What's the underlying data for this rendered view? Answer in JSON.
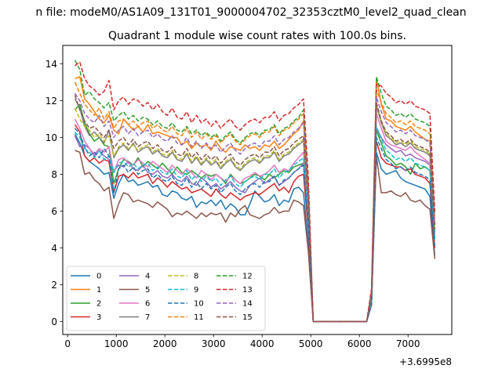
{
  "figure": {
    "suptitle": "n file: modeM0/AS1A09_131T01_9000004702_32353cztM0_level2_quad_clean"
  },
  "chart_data": {
    "type": "line",
    "title": "Quadrant 1 module wise count rates with 100.0s bins.",
    "xlabel": "",
    "ylabel": "",
    "x_offset_label": "+3.6995e8",
    "xlim": [
      -100,
      7900
    ],
    "ylim": [
      -0.7,
      15
    ],
    "xticks": [
      0,
      1000,
      2000,
      3000,
      4000,
      5000,
      6000,
      7000
    ],
    "yticks": [
      0,
      2,
      4,
      6,
      8,
      10,
      12,
      14
    ],
    "legend_position": "lower-left",
    "legend_columns": 4,
    "grid": false,
    "x": [
      150,
      250,
      350,
      450,
      550,
      650,
      750,
      850,
      950,
      1050,
      1150,
      1250,
      1350,
      1450,
      1550,
      1650,
      1750,
      1850,
      1950,
      2050,
      2150,
      2250,
      2350,
      2450,
      2550,
      2650,
      2750,
      2850,
      2950,
      3050,
      3150,
      3250,
      3350,
      3450,
      3550,
      3650,
      3750,
      3850,
      3950,
      4050,
      4150,
      4250,
      4350,
      4450,
      4550,
      4650,
      4750,
      4850,
      4950,
      5050,
      6150,
      6250,
      6350,
      6450,
      6550,
      6650,
      6750,
      6850,
      6950,
      7050,
      7150,
      7250,
      7350,
      7450,
      7550
    ],
    "series": [
      {
        "name": "0",
        "color": "#1f77b4",
        "dash": "solid",
        "values": [
          10.2,
          9.7,
          9.0,
          8.7,
          8.5,
          8.3,
          8.0,
          8.1,
          6.7,
          7.5,
          8.0,
          7.6,
          7.7,
          7.4,
          7.5,
          7.6,
          7.3,
          7.4,
          6.9,
          6.8,
          7.1,
          7.0,
          6.7,
          6.6,
          6.8,
          6.2,
          6.5,
          6.4,
          6.6,
          6.3,
          6.6,
          6.1,
          6.4,
          6.2,
          5.8,
          5.8,
          6.4,
          7.1,
          6.8,
          6.5,
          6.6,
          6.9,
          6.3,
          6.6,
          6.5,
          7.2,
          7.3,
          7.0,
          4.2,
          0.0,
          0.0,
          1.0,
          9.2,
          8.3,
          8.0,
          8.1,
          8.2,
          7.8,
          7.6,
          7.5,
          7.4,
          7.3,
          7.2,
          6.8,
          3.6
        ]
      },
      {
        "name": "1",
        "color": "#ff7f0e",
        "dash": "solid",
        "values": [
          13.2,
          13.3,
          12.1,
          11.8,
          11.4,
          11.0,
          10.8,
          11.2,
          10.4,
          10.2,
          11.0,
          10.7,
          10.4,
          10.6,
          10.3,
          10.7,
          10.2,
          10.3,
          10.2,
          10.1,
          10.0,
          10.0,
          9.6,
          9.8,
          9.4,
          9.7,
          9.5,
          9.6,
          9.3,
          9.8,
          9.4,
          9.2,
          9.5,
          9.4,
          9.3,
          9.6,
          9.4,
          9.5,
          9.3,
          9.6,
          9.5,
          9.8,
          9.4,
          9.6,
          9.9,
          10.2,
          10.4,
          10.9,
          6.8,
          0.0,
          0.0,
          1.4,
          13.2,
          11.8,
          11.0,
          10.9,
          10.6,
          10.5,
          10.4,
          10.6,
          10.3,
          10.1,
          9.9,
          9.8,
          5.2
        ]
      },
      {
        "name": "2",
        "color": "#2ca02c",
        "dash": "solid",
        "values": [
          11.5,
          11.8,
          10.8,
          10.2,
          9.8,
          10.0,
          9.6,
          9.5,
          7.5,
          8.3,
          8.8,
          8.7,
          8.5,
          8.9,
          8.4,
          8.7,
          8.5,
          8.3,
          8.6,
          8.3,
          8.0,
          8.4,
          8.1,
          8.0,
          8.2,
          8.0,
          7.8,
          8.0,
          7.9,
          8.0,
          7.8,
          7.5,
          8.0,
          7.7,
          7.5,
          7.6,
          7.8,
          8.0,
          7.9,
          7.7,
          8.0,
          7.8,
          8.0,
          8.2,
          8.1,
          8.4,
          8.5,
          8.6,
          5.5,
          0.0,
          0.0,
          1.2,
          10.4,
          9.7,
          9.0,
          8.8,
          8.5,
          8.6,
          8.4,
          8.0,
          8.6,
          8.3,
          8.4,
          8.2,
          4.5
        ]
      },
      {
        "name": "3",
        "color": "#d62728",
        "dash": "solid",
        "values": [
          10.7,
          10.3,
          9.0,
          8.7,
          8.9,
          8.6,
          8.8,
          8.7,
          7.0,
          7.9,
          8.0,
          7.8,
          8.1,
          7.8,
          7.9,
          8.0,
          7.5,
          7.8,
          7.6,
          7.3,
          7.6,
          7.4,
          7.2,
          7.3,
          7.0,
          7.1,
          7.2,
          7.0,
          6.8,
          7.2,
          6.9,
          6.7,
          7.0,
          6.8,
          6.6,
          6.8,
          6.9,
          7.0,
          6.9,
          7.1,
          7.3,
          7.5,
          7.1,
          7.3,
          7.0,
          7.6,
          7.9,
          8.0,
          5.0,
          0.0,
          0.0,
          1.1,
          9.8,
          8.9,
          8.6,
          8.5,
          8.4,
          8.4,
          8.2,
          8.3,
          8.0,
          7.9,
          7.8,
          7.5,
          4.0
        ]
      },
      {
        "name": "4",
        "color": "#9467bd",
        "dash": "solid",
        "values": [
          10.1,
          9.5,
          9.6,
          9.4,
          9.0,
          9.3,
          9.0,
          8.8,
          8.2,
          8.5,
          8.4,
          8.7,
          8.3,
          8.2,
          8.5,
          8.1,
          8.0,
          8.2,
          7.9,
          7.8,
          8.0,
          7.7,
          7.6,
          7.9,
          7.5,
          7.4,
          7.8,
          7.6,
          7.3,
          7.5,
          7.2,
          7.4,
          7.6,
          7.3,
          7.1,
          7.0,
          7.4,
          7.6,
          7.8,
          7.5,
          7.7,
          7.9,
          7.4,
          7.6,
          7.8,
          8.1,
          8.3,
          8.6,
          5.8,
          0.0,
          0.0,
          1.3,
          10.5,
          10.0,
          9.6,
          9.4,
          9.2,
          9.3,
          9.0,
          9.1,
          8.9,
          8.8,
          8.7,
          8.5,
          4.7
        ]
      },
      {
        "name": "5",
        "color": "#8c564b",
        "dash": "solid",
        "values": [
          9.3,
          9.2,
          8.0,
          8.1,
          7.7,
          7.5,
          7.1,
          7.3,
          5.6,
          6.4,
          7.0,
          6.9,
          6.5,
          6.6,
          6.5,
          6.4,
          6.2,
          6.5,
          6.3,
          6.1,
          5.7,
          5.9,
          5.8,
          6.0,
          5.8,
          5.6,
          5.9,
          5.7,
          5.9,
          5.8,
          5.9,
          5.4,
          5.9,
          5.7,
          6.1,
          6.3,
          5.8,
          5.7,
          5.6,
          5.8,
          5.9,
          6.2,
          5.9,
          6.0,
          6.0,
          6.6,
          6.5,
          6.3,
          3.8,
          0.0,
          0.0,
          0.9,
          9.0,
          7.0,
          7.0,
          7.1,
          6.9,
          6.8,
          7.0,
          6.6,
          6.5,
          6.6,
          6.3,
          6.1,
          3.4
        ]
      },
      {
        "name": "6",
        "color": "#e377c2",
        "dash": "solid",
        "values": [
          11.0,
          10.5,
          9.8,
          9.4,
          9.1,
          9.4,
          9.2,
          9.5,
          8.1,
          8.8,
          8.9,
          8.6,
          8.5,
          8.8,
          8.6,
          8.4,
          8.7,
          8.5,
          8.3,
          8.1,
          8.5,
          8.2,
          8.0,
          8.3,
          8.1,
          7.8,
          8.2,
          8.0,
          7.7,
          8.0,
          7.8,
          7.6,
          7.9,
          7.7,
          7.5,
          7.8,
          7.9,
          8.1,
          7.9,
          8.0,
          8.2,
          8.5,
          8.1,
          8.3,
          8.2,
          8.6,
          8.9,
          9.2,
          6.0,
          0.0,
          0.0,
          1.2,
          11.3,
          10.5,
          9.8,
          9.6,
          9.5,
          9.4,
          9.3,
          9.5,
          9.2,
          9.0,
          8.8,
          8.6,
          4.8
        ]
      },
      {
        "name": "7",
        "color": "#7f7f7f",
        "dash": "solid",
        "values": [
          12.1,
          11.6,
          10.6,
          10.1,
          10.3,
          10.0,
          9.7,
          10.4,
          8.9,
          9.4,
          9.6,
          9.3,
          9.7,
          9.2,
          9.4,
          9.5,
          9.1,
          9.3,
          9.0,
          8.9,
          9.2,
          8.8,
          8.7,
          9.1,
          8.6,
          8.9,
          8.5,
          8.8,
          8.5,
          8.7,
          8.3,
          8.6,
          8.8,
          8.4,
          8.2,
          8.5,
          8.7,
          8.8,
          8.6,
          8.9,
          8.9,
          9.2,
          8.7,
          9.0,
          9.1,
          9.4,
          9.6,
          9.8,
          6.3,
          0.0,
          0.0,
          1.3,
          11.7,
          10.8,
          10.1,
          9.9,
          9.6,
          9.7,
          9.5,
          9.7,
          9.4,
          9.3,
          9.2,
          9.0,
          4.9
        ]
      },
      {
        "name": "8",
        "color": "#bcbd22",
        "dash": "dashed",
        "values": [
          11.6,
          11.0,
          10.6,
          10.4,
          10.0,
          10.2,
          9.8,
          10.1,
          9.0,
          9.5,
          9.7,
          9.4,
          9.6,
          9.3,
          9.5,
          9.6,
          9.2,
          9.4,
          9.1,
          9.0,
          9.3,
          8.9,
          8.8,
          9.2,
          8.7,
          9.0,
          8.6,
          8.9,
          8.6,
          8.8,
          8.4,
          8.7,
          8.9,
          8.5,
          8.3,
          8.6,
          8.8,
          8.9,
          8.7,
          9.0,
          9.0,
          9.3,
          8.8,
          9.1,
          9.2,
          9.5,
          9.7,
          9.9,
          6.4,
          0.0,
          0.0,
          1.4,
          11.8,
          10.9,
          10.2,
          10.0,
          9.7,
          9.8,
          9.6,
          9.8,
          9.5,
          9.4,
          9.3,
          9.1,
          5.0
        ]
      },
      {
        "name": "9",
        "color": "#17becf",
        "dash": "dashed",
        "values": [
          10.3,
          10.0,
          9.4,
          9.2,
          8.9,
          9.3,
          8.8,
          9.0,
          8.1,
          8.6,
          8.7,
          8.4,
          8.6,
          8.3,
          8.5,
          8.6,
          8.2,
          8.4,
          8.1,
          8.0,
          8.3,
          7.9,
          7.8,
          8.2,
          7.7,
          8.0,
          7.6,
          7.9,
          7.6,
          7.8,
          7.4,
          7.7,
          7.9,
          7.5,
          7.3,
          7.6,
          7.8,
          7.9,
          7.7,
          8.0,
          8.0,
          8.3,
          7.8,
          8.1,
          8.2,
          8.5,
          8.7,
          8.9,
          5.6,
          0.0,
          0.0,
          1.1,
          10.6,
          9.9,
          9.3,
          9.1,
          8.8,
          8.9,
          8.7,
          8.9,
          8.6,
          8.5,
          8.4,
          8.2,
          4.4
        ]
      },
      {
        "name": "10",
        "color": "#1f77b4",
        "dash": "dashed",
        "values": [
          10.5,
          10.2,
          9.5,
          9.0,
          9.2,
          8.9,
          9.4,
          9.0,
          7.0,
          8.3,
          8.5,
          8.1,
          8.4,
          8.0,
          8.2,
          8.3,
          7.8,
          8.0,
          7.7,
          7.6,
          7.9,
          7.5,
          7.4,
          7.8,
          7.3,
          7.6,
          7.2,
          7.5,
          7.2,
          7.4,
          7.0,
          7.3,
          7.5,
          7.1,
          6.9,
          7.2,
          7.4,
          7.5,
          7.3,
          7.6,
          7.6,
          7.9,
          7.4,
          7.7,
          7.8,
          8.1,
          8.3,
          8.5,
          5.3,
          0.0,
          0.0,
          1.0,
          10.0,
          9.4,
          8.8,
          8.6,
          8.3,
          8.4,
          8.2,
          8.4,
          8.1,
          8.0,
          7.9,
          7.7,
          4.1
        ]
      },
      {
        "name": "11",
        "color": "#ff7f0e",
        "dash": "dashed",
        "values": [
          13.0,
          12.4,
          11.8,
          11.5,
          11.2,
          11.6,
          11.0,
          11.4,
          10.5,
          10.9,
          11.0,
          10.7,
          10.9,
          10.6,
          10.8,
          10.9,
          10.5,
          10.7,
          10.4,
          10.3,
          10.6,
          10.2,
          10.1,
          10.5,
          10.0,
          10.3,
          9.9,
          10.2,
          9.9,
          10.1,
          9.7,
          10.0,
          10.2,
          9.8,
          9.6,
          9.9,
          10.1,
          10.2,
          10.0,
          10.3,
          10.3,
          10.6,
          10.1,
          10.4,
          10.5,
          10.8,
          11.0,
          11.3,
          7.2,
          0.0,
          0.0,
          1.6,
          12.6,
          11.9,
          11.3,
          11.1,
          10.8,
          10.9,
          10.7,
          10.9,
          10.6,
          10.5,
          10.4,
          10.2,
          5.6
        ]
      },
      {
        "name": "12",
        "color": "#2ca02c",
        "dash": "dashed",
        "values": [
          14.2,
          13.7,
          12.3,
          12.5,
          12.1,
          11.9,
          11.6,
          11.9,
          10.9,
          11.2,
          11.4,
          11.0,
          11.2,
          10.9,
          11.1,
          11.0,
          10.7,
          10.9,
          10.6,
          10.5,
          10.8,
          10.4,
          10.3,
          10.6,
          10.2,
          10.4,
          10.1,
          10.3,
          10.0,
          10.2,
          9.8,
          10.1,
          10.3,
          9.9,
          9.7,
          10.0,
          10.2,
          10.3,
          10.1,
          10.4,
          10.4,
          10.7,
          10.2,
          10.5,
          10.6,
          10.9,
          11.1,
          11.5,
          7.4,
          0.0,
          0.0,
          1.7,
          13.3,
          12.4,
          11.7,
          11.5,
          11.2,
          11.3,
          11.1,
          11.3,
          11.0,
          10.9,
          10.8,
          10.6,
          5.8
        ]
      },
      {
        "name": "13",
        "color": "#d62728",
        "dash": "dashed",
        "values": [
          13.9,
          14.1,
          13.2,
          12.8,
          12.6,
          12.3,
          12.5,
          13.1,
          11.5,
          12.0,
          12.2,
          11.8,
          12.1,
          12.0,
          11.7,
          11.9,
          11.5,
          11.8,
          11.4,
          11.2,
          11.6,
          11.1,
          11.0,
          11.4,
          10.8,
          11.2,
          10.8,
          11.0,
          10.6,
          10.9,
          10.5,
          10.8,
          11.0,
          10.6,
          10.4,
          10.7,
          10.9,
          11.0,
          10.8,
          11.1,
          11.1,
          11.4,
          10.9,
          11.2,
          11.3,
          11.6,
          11.8,
          12.1,
          7.8,
          0.0,
          0.0,
          1.8,
          12.9,
          12.8,
          12.4,
          12.2,
          11.9,
          12.0,
          11.8,
          12.0,
          11.7,
          11.6,
          11.5,
          11.3,
          6.0
        ]
      },
      {
        "name": "14",
        "color": "#9467bd",
        "dash": "dashed",
        "values": [
          12.4,
          12.0,
          11.3,
          11.0,
          10.8,
          11.2,
          10.6,
          10.9,
          10.0,
          10.4,
          10.6,
          10.2,
          10.5,
          10.1,
          10.3,
          10.4,
          10.0,
          10.2,
          9.9,
          9.8,
          10.1,
          9.7,
          9.6,
          10.0,
          9.5,
          9.8,
          9.4,
          9.7,
          9.4,
          9.6,
          9.2,
          9.5,
          9.7,
          9.3,
          9.1,
          9.4,
          9.6,
          9.7,
          9.5,
          9.8,
          9.8,
          10.1,
          9.6,
          9.9,
          10.0,
          10.3,
          10.5,
          10.8,
          6.9,
          0.0,
          0.0,
          1.5,
          12.2,
          11.4,
          10.8,
          10.6,
          10.3,
          10.4,
          10.2,
          10.4,
          10.1,
          10.0,
          9.9,
          9.7,
          5.3
        ]
      },
      {
        "name": "15",
        "color": "#8c564b",
        "dash": "dashed",
        "values": [
          12.3,
          11.5,
          10.9,
          10.5,
          10.6,
          10.3,
          10.0,
          10.4,
          9.4,
          9.8,
          10.0,
          9.6,
          9.9,
          9.5,
          9.7,
          9.8,
          9.4,
          9.6,
          9.3,
          9.2,
          9.5,
          9.1,
          9.0,
          9.4,
          8.9,
          9.2,
          8.8,
          9.1,
          8.8,
          9.0,
          8.6,
          8.9,
          9.1,
          8.7,
          8.5,
          8.8,
          9.0,
          9.1,
          8.9,
          9.2,
          9.2,
          9.5,
          9.0,
          9.3,
          9.4,
          9.7,
          9.9,
          10.1,
          6.5,
          0.0,
          0.0,
          1.4,
          11.9,
          10.9,
          10.3,
          10.1,
          9.8,
          9.9,
          9.7,
          9.9,
          9.6,
          9.5,
          9.4,
          9.2,
          5.0
        ]
      }
    ]
  }
}
